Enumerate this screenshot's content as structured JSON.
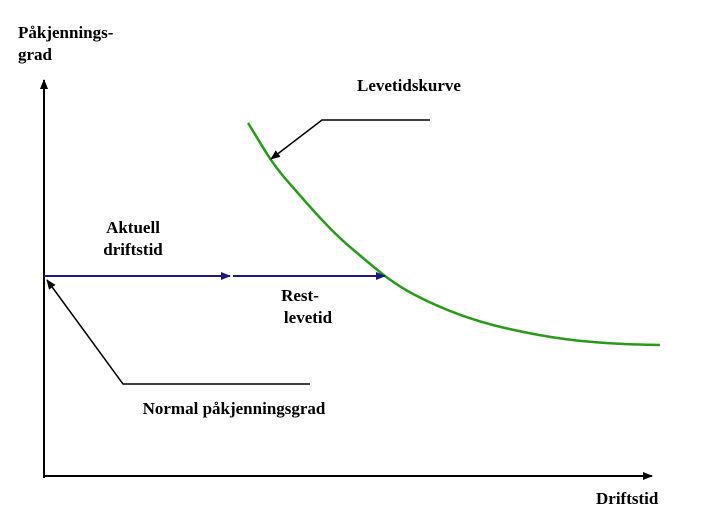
{
  "y_axis_label": [
    "Påkjennings-",
    "grad"
  ],
  "x_axis_label": "Driftstid",
  "curve_label": "Levetidskurve",
  "current_label": [
    "Aktuell",
    "driftstid"
  ],
  "remaining_label": [
    "Rest-",
    "levetid"
  ],
  "normal_label": "Normal påkjenningsgrad"
}
